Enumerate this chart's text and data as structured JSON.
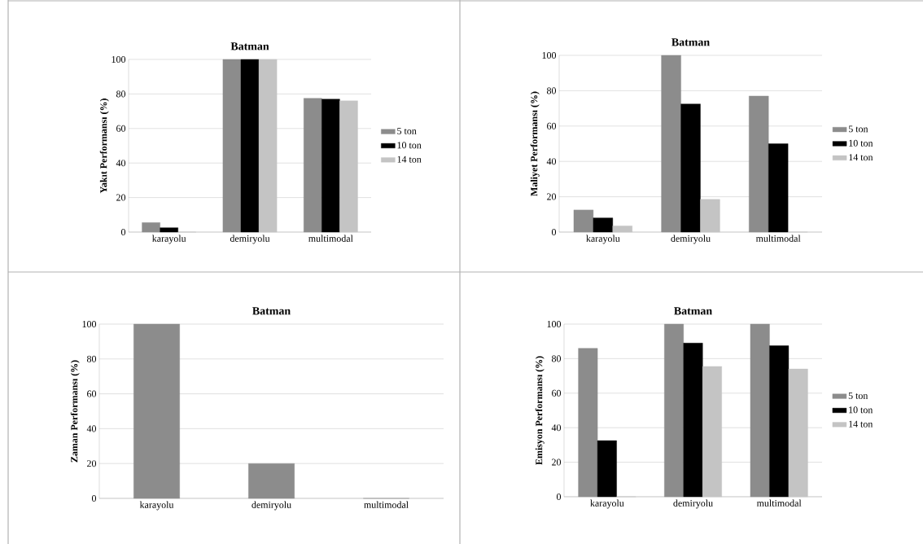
{
  "chart_data": [
    {
      "type": "bar",
      "title": "Batman",
      "ylabel": "Yakıt Performansı (%)",
      "categories": [
        "karayolu",
        "demiryolu",
        "multimodal"
      ],
      "ylim": [
        0,
        100
      ],
      "yticks": [
        0,
        20,
        40,
        60,
        80,
        100
      ],
      "grid": "y",
      "legend": "right",
      "series": [
        {
          "name": "5 ton",
          "color": "#8c8c8c",
          "values": [
            5.5,
            100,
            77.5
          ]
        },
        {
          "name": "10 ton",
          "color": "#000000",
          "values": [
            2.5,
            100,
            77
          ]
        },
        {
          "name": "14 ton",
          "color": "#c4c4c4",
          "values": [
            0,
            100,
            76
          ]
        }
      ]
    },
    {
      "type": "bar",
      "title": "Batman",
      "ylabel": "Maliyet Performansı (%)",
      "categories": [
        "karayolu",
        "demiryolu",
        "multimodal"
      ],
      "ylim": [
        0,
        100
      ],
      "yticks": [
        0,
        20,
        40,
        60,
        80,
        100
      ],
      "grid": "y",
      "legend": "right",
      "series": [
        {
          "name": "5 ton",
          "color": "#8c8c8c",
          "values": [
            12.5,
            100,
            77
          ]
        },
        {
          "name": "10 ton",
          "color": "#000000",
          "values": [
            8,
            72.5,
            50
          ]
        },
        {
          "name": "14 ton",
          "color": "#c4c4c4",
          "values": [
            3.5,
            18.5,
            0
          ]
        }
      ]
    },
    {
      "type": "bar",
      "title": "Batman",
      "ylabel": "Zaman Performansı (%)",
      "categories": [
        "karayolu",
        "demiryolu",
        "multimodal"
      ],
      "ylim": [
        0,
        100
      ],
      "yticks": [
        0,
        20,
        40,
        60,
        80,
        100
      ],
      "grid": "y",
      "series": [
        {
          "color": "#8c8c8c",
          "values": [
            100,
            20,
            0
          ]
        }
      ]
    },
    {
      "type": "bar",
      "title": "Batman",
      "ylabel": "Emisyon Performansı (%)",
      "categories": [
        "karayolu",
        "demiryolu",
        "multimodal"
      ],
      "ylim": [
        0,
        100
      ],
      "yticks": [
        0,
        20,
        40,
        60,
        80,
        100
      ],
      "grid": "y",
      "legend": "right",
      "series": [
        {
          "name": "5 ton",
          "color": "#8c8c8c",
          "values": [
            86,
            100,
            100
          ]
        },
        {
          "name": "10 ton",
          "color": "#000000",
          "values": [
            32.5,
            89,
            87.5
          ]
        },
        {
          "name": "14 ton",
          "color": "#c4c4c4",
          "values": [
            0,
            75.5,
            74
          ]
        }
      ]
    }
  ]
}
